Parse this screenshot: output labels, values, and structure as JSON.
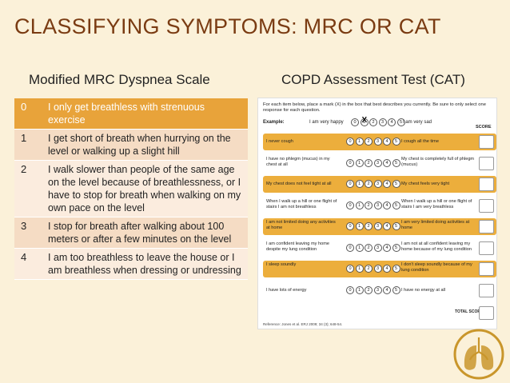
{
  "title": "CLASSIFYING SYMPTOMS: MRC OR CAT",
  "mrc": {
    "heading": "Modified MRC Dyspnea Scale",
    "rows": [
      {
        "grade": "0",
        "text": "I only get breathless with strenuous exercise"
      },
      {
        "grade": "1",
        "text": "I get short of breath when hurrying on the level or walking up a slight hill"
      },
      {
        "grade": "2",
        "text": "I walk slower than people of the same age on the level because of breathlessness, or I have to stop for breath when walking on my own pace on the level"
      },
      {
        "grade": "3",
        "text": "I stop for breath after walking about 100 meters or after a few minutes on the level"
      },
      {
        "grade": "4",
        "text": "I am too breathless to leave the house or I am breathless when dressing or undressing"
      }
    ]
  },
  "cat": {
    "heading": "COPD Assessment Test (CAT)",
    "instructions": "For each item below, place a mark (X) in the box that best describes you currently. Be sure to only select one response for each question.",
    "example": {
      "label": "Example:",
      "left": "I am very happy",
      "right": "I am very sad",
      "marked_value": 1
    },
    "score_header": "SCORE",
    "scale": [
      "0",
      "1",
      "2",
      "3",
      "4",
      "5"
    ],
    "items": [
      {
        "left": "I never cough",
        "right": "I cough all the time"
      },
      {
        "left": "I have no phlegm (mucus) in my chest at all",
        "right": "My chest is completely full of phlegm (mucus)"
      },
      {
        "left": "My chest does not feel tight at all",
        "right": "My chest feels very tight"
      },
      {
        "left": "When I walk up a hill or one flight of stairs I am not breathless",
        "right": "When I walk up a hill or one flight of stairs I am very breathless"
      },
      {
        "left": "I am not limited doing any activities at home",
        "right": "I am very limited doing activities at home"
      },
      {
        "left": "I am confident leaving my home despite my lung condition",
        "right": "I am not at all confident leaving my home because of my lung condition"
      },
      {
        "left": "I sleep soundly",
        "right": "I don't sleep soundly because of my lung condition"
      },
      {
        "left": "I have lots of energy",
        "right": "I have no energy at all"
      }
    ],
    "total_score_label": "TOTAL SCORE",
    "reference": "Reference: Jones et al. ERJ 2009; 34 (3); 648-54."
  },
  "colors": {
    "background": "#fbf1d9",
    "title": "#7a3b12",
    "accent_orange": "#e8a33a",
    "row_odd": "#f5dcc4",
    "row_even": "#fbecde",
    "cat_shade": "#ecae3c",
    "logo": "#c9962b"
  },
  "icons": {
    "logo": "lungs-logo-icon"
  }
}
